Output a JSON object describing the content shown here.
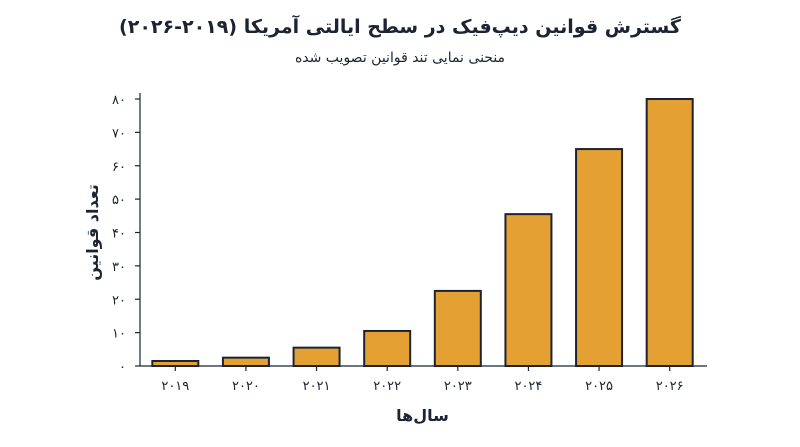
{
  "chart_data": {
    "type": "bar",
    "title": "گسترش قوانین دیپ‌فیک در سطح ایالتی آمریکا (۲۰۱۹-۲۰۲۶)",
    "subtitle": "منحنی نمایی تند قوانین تصویب شده",
    "xlabel": "سال‌ها",
    "ylabel": "تعداد قوانین",
    "categories": [
      "۲۰۱۹",
      "۲۰۲۰",
      "۲۰۲۱",
      "۲۰۲۲",
      "۲۰۲۳",
      "۲۰۲۴",
      "۲۰۲۵",
      "۲۰۲۶"
    ],
    "values": [
      1.5,
      2.5,
      5.5,
      10.5,
      22.5,
      45.5,
      65,
      80
    ],
    "ylim": [
      0,
      80
    ],
    "yticks": [
      0,
      10,
      20,
      30,
      40,
      50,
      60,
      70,
      80
    ],
    "ytick_labels": [
      "۰",
      "۱۰",
      "۲۰",
      "۳۰",
      "۴۰",
      "۵۰",
      "۶۰",
      "۷۰",
      "۸۰"
    ],
    "grid": false,
    "colors": {
      "bar_fill": "#E4A032",
      "bar_stroke": "#1C2333",
      "axis": "#1C2333"
    }
  }
}
